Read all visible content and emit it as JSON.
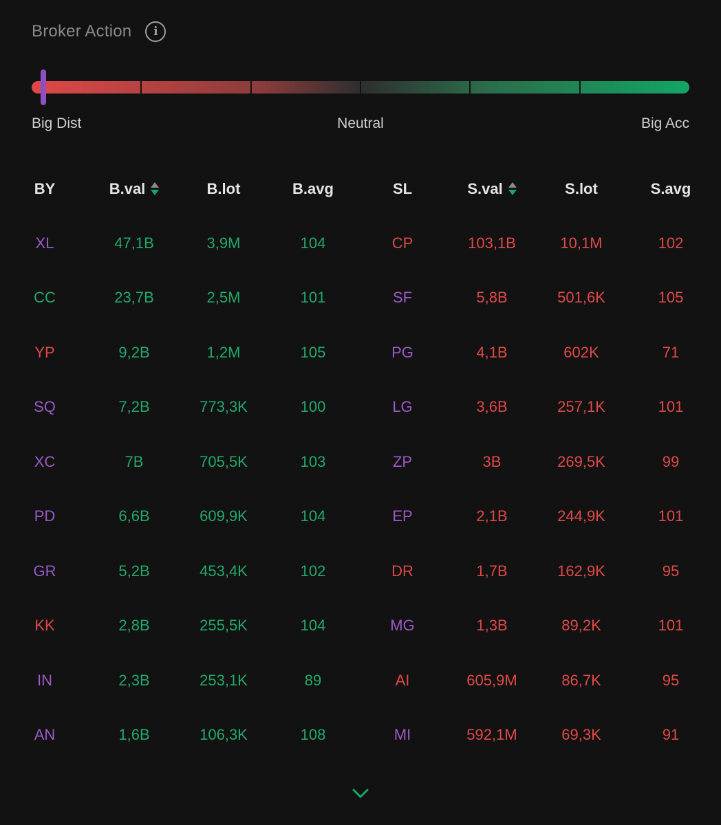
{
  "header": {
    "title": "Broker Action",
    "info_icon": "info-icon"
  },
  "meter": {
    "left_label": "Big Dist",
    "mid_label": "Neutral",
    "right_label": "Big Acc",
    "segments": 6,
    "marker_fraction": 0.018,
    "colors": {
      "distribution": "#e04848",
      "neutral": "#2e2e2e",
      "accumulation": "#12a666",
      "marker": "#8e4fc4"
    }
  },
  "table": {
    "columns": [
      "BY",
      "B.val",
      "B.lot",
      "B.avg",
      "SL",
      "S.val",
      "S.lot",
      "S.avg"
    ],
    "sortable": [
      false,
      true,
      false,
      false,
      false,
      true,
      false,
      false
    ],
    "rows": [
      {
        "by": "XL",
        "by_color": "purple",
        "bval": "47,1B",
        "blot": "3,9M",
        "bavg": "104",
        "sl": "CP",
        "sl_color": "red",
        "sval": "103,1B",
        "slot": "10,1M",
        "savg": "102"
      },
      {
        "by": "CC",
        "by_color": "green",
        "bval": "23,7B",
        "blot": "2,5M",
        "bavg": "101",
        "sl": "SF",
        "sl_color": "purple",
        "sval": "5,8B",
        "slot": "501,6K",
        "savg": "105"
      },
      {
        "by": "YP",
        "by_color": "red",
        "bval": "9,2B",
        "blot": "1,2M",
        "bavg": "105",
        "sl": "PG",
        "sl_color": "purple",
        "sval": "4,1B",
        "slot": "602K",
        "savg": "71"
      },
      {
        "by": "SQ",
        "by_color": "purple",
        "bval": "7,2B",
        "blot": "773,3K",
        "bavg": "100",
        "sl": "LG",
        "sl_color": "purple",
        "sval": "3,6B",
        "slot": "257,1K",
        "savg": "101"
      },
      {
        "by": "XC",
        "by_color": "purple",
        "bval": "7B",
        "blot": "705,5K",
        "bavg": "103",
        "sl": "ZP",
        "sl_color": "purple",
        "sval": "3B",
        "slot": "269,5K",
        "savg": "99"
      },
      {
        "by": "PD",
        "by_color": "purple",
        "bval": "6,6B",
        "blot": "609,9K",
        "bavg": "104",
        "sl": "EP",
        "sl_color": "purple",
        "sval": "2,1B",
        "slot": "244,9K",
        "savg": "101"
      },
      {
        "by": "GR",
        "by_color": "purple",
        "bval": "5,2B",
        "blot": "453,4K",
        "bavg": "102",
        "sl": "DR",
        "sl_color": "red",
        "sval": "1,7B",
        "slot": "162,9K",
        "savg": "95"
      },
      {
        "by": "KK",
        "by_color": "red",
        "bval": "2,8B",
        "blot": "255,5K",
        "bavg": "104",
        "sl": "MG",
        "sl_color": "purple",
        "sval": "1,3B",
        "slot": "89,2K",
        "savg": "101"
      },
      {
        "by": "IN",
        "by_color": "purple",
        "bval": "2,3B",
        "blot": "253,1K",
        "bavg": "89",
        "sl": "AI",
        "sl_color": "red",
        "sval": "605,9M",
        "slot": "86,7K",
        "savg": "95"
      },
      {
        "by": "AN",
        "by_color": "purple",
        "bval": "1,6B",
        "blot": "106,3K",
        "bavg": "108",
        "sl": "MI",
        "sl_color": "purple",
        "sval": "592,1M",
        "slot": "69,3K",
        "savg": "91"
      }
    ]
  },
  "footer": {
    "expand_icon": "chevron-down-icon"
  }
}
